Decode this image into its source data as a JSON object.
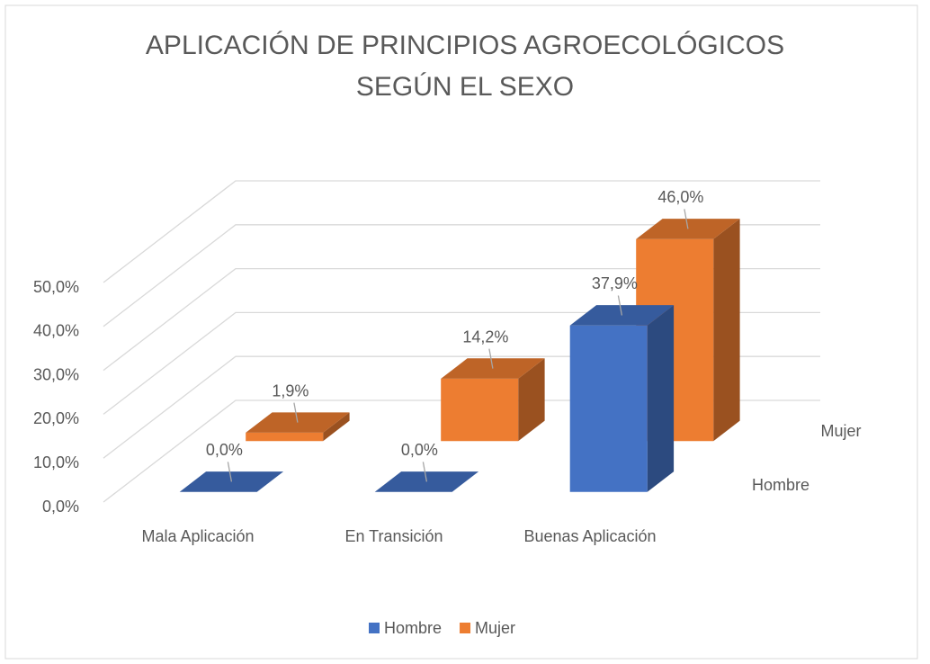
{
  "chart_data": {
    "type": "bar3d",
    "title": "APLICACIÓN DE PRINCIPIOS AGROECOLÓGICOS SEGÚN EL SEXO",
    "categories": [
      "Mala Aplicación",
      "En Transición",
      "Buenas Aplicación"
    ],
    "series": [
      {
        "name": "Hombre",
        "color": "#4472c4",
        "values": [
          0,
          0,
          37.9
        ],
        "value_labels": [
          "0,0%",
          "0,0%",
          "37,9%"
        ]
      },
      {
        "name": "Mujer",
        "color": "#ed7d31",
        "values": [
          1.9,
          14.2,
          46.0
        ],
        "value_labels": [
          "1,9%",
          "14,2%",
          "46,0%"
        ]
      }
    ],
    "ylim": [
      0,
      50
    ],
    "yticks": [
      {
        "value": 0,
        "label": "0,0%"
      },
      {
        "value": 10,
        "label": "10,0%"
      },
      {
        "value": 20,
        "label": "20,0%"
      },
      {
        "value": 30,
        "label": "30,0%"
      },
      {
        "value": 40,
        "label": "40,0%"
      },
      {
        "value": 50,
        "label": "50,0%"
      }
    ],
    "grid": true,
    "legend": "bottom"
  }
}
